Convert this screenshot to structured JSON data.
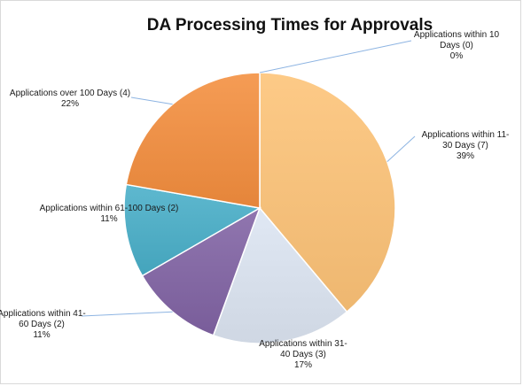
{
  "chart_data": {
    "type": "pie",
    "title": "DA Processing Times for Approvals",
    "slices": [
      {
        "label": "Applications within 10 Days",
        "count": 0,
        "percent": "0%",
        "color": "#bfbfbf"
      },
      {
        "label": "Applications within 11-30 Days",
        "count": 7,
        "percent": "39%",
        "color": "#fdc377"
      },
      {
        "label": "Applications within 31-40 Days",
        "count": 3,
        "percent": "17%",
        "color": "#dce5f2"
      },
      {
        "label": "Applications within 41-60 Days",
        "count": 2,
        "percent": "11%",
        "color": "#8163a4"
      },
      {
        "label": "Applications within 61-100 Days",
        "count": 2,
        "percent": "11%",
        "color": "#48aec8"
      },
      {
        "label": "Applications over 100 Days",
        "count": 4,
        "percent": "22%",
        "color": "#f48e3e"
      }
    ],
    "data_labels": [
      {
        "lines": [
          "Applications within 10",
          "Days (0)",
          "0%"
        ]
      },
      {
        "lines": [
          "Applications within 11-",
          "30 Days (7)",
          "39%"
        ]
      },
      {
        "lines": [
          "Applications within 31-",
          "40 Days (3)",
          "17%"
        ]
      },
      {
        "lines": [
          "Applications within 41-",
          "60 Days (2)",
          "11%"
        ]
      },
      {
        "lines": [
          "Applications within 61-100 Days (2)",
          "11%"
        ]
      },
      {
        "lines": [
          "Applications over 100 Days (4)",
          "22%"
        ]
      }
    ]
  }
}
